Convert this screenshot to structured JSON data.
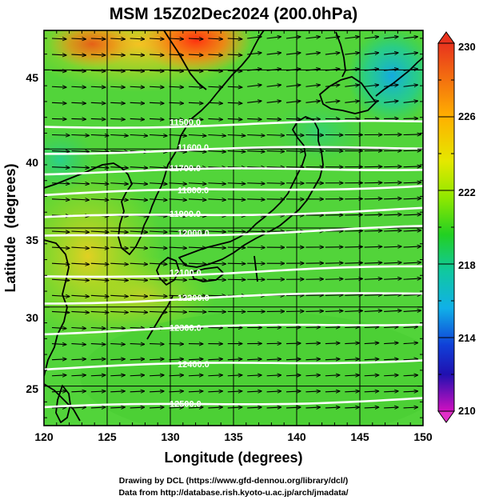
{
  "title": "MSM 15Z02Dec2024 (200.0hPa)",
  "axes": {
    "xlabel": "Longitude (degrees)",
    "ylabel": "Latitude  (degrees)",
    "x_ticks": [
      "120",
      "125",
      "130",
      "135",
      "140",
      "145",
      "150"
    ],
    "y_ticks": [
      "25",
      "30",
      "35",
      "40",
      "45"
    ]
  },
  "colorbar": {
    "labels": [
      "230",
      "226",
      "222",
      "218",
      "214",
      "210"
    ]
  },
  "credits": {
    "line1": "Drawing by DCL (https://www.gfd-dennou.org/library/dcl/)",
    "line2": "Data from http://database.rish.kyoto-u.ac.jp/arch/jmadata/"
  },
  "chart_data": {
    "type": "heatmap",
    "title": "MSM 15Z02Dec2024 (200.0hPa)",
    "xlabel": "Longitude (degrees)",
    "ylabel": "Latitude  (degrees)",
    "xlim": [
      120,
      150
    ],
    "ylim": [
      22.5,
      47.5
    ],
    "colorbar_range": [
      210,
      230
    ],
    "colorbar_ticks": [
      230,
      226,
      222,
      218,
      214,
      210
    ],
    "contours": [
      {
        "label": "11500.0",
        "lat": 41.4
      },
      {
        "label": "11600.0",
        "lat": 39.8
      },
      {
        "label": "11700.0",
        "lat": 38.5
      },
      {
        "label": "11800.0",
        "lat": 37.1
      },
      {
        "label": "11900.0",
        "lat": 35.6
      },
      {
        "label": "12000.0",
        "lat": 34.4
      },
      {
        "label": "12100.0",
        "lat": 31.9
      },
      {
        "label": "12200.0",
        "lat": 30.3
      },
      {
        "label": "12300.0",
        "lat": 28.4
      },
      {
        "label": "12400.0",
        "lat": 26.1
      },
      {
        "label": "12500.0",
        "lat": 23.6
      }
    ]
  }
}
